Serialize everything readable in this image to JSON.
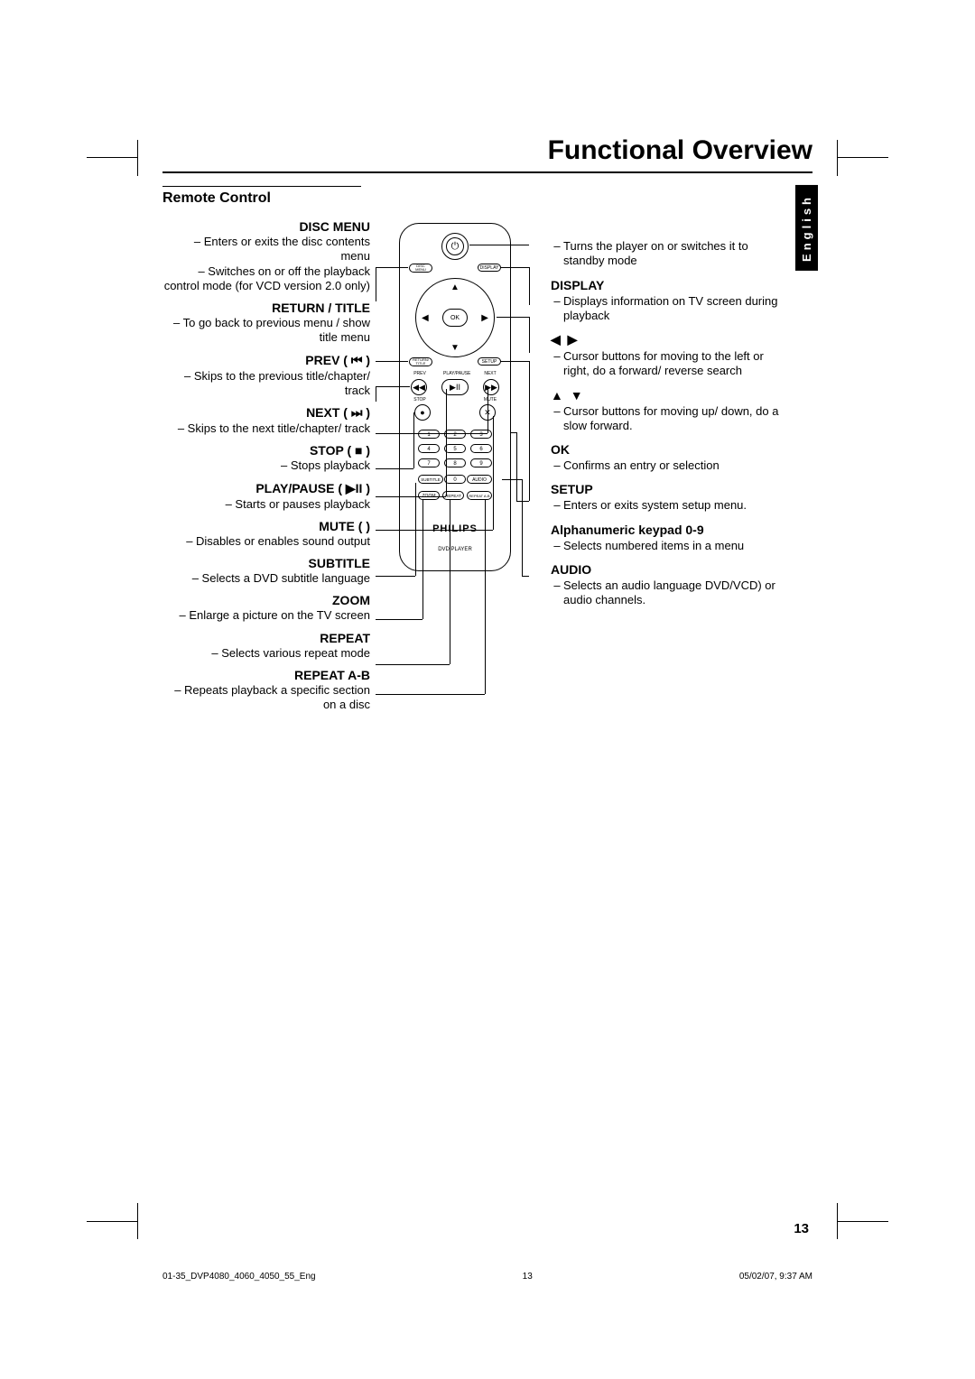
{
  "title": "Functional Overview",
  "language_tab": "English",
  "section_title": "Remote Control",
  "left_items": [
    {
      "heading": "DISC MENU",
      "lines": [
        "– Enters or exits the disc contents menu",
        "– Switches on or off the playback control mode (for VCD version 2.0 only)"
      ]
    },
    {
      "heading": "RETURN / TITLE",
      "lines": [
        "– To go back to previous menu / show  title menu"
      ]
    },
    {
      "heading": "PREV ( ⏮ )",
      "lines": [
        "– Skips to the previous title/chapter/ track"
      ]
    },
    {
      "heading": "NEXT ( ⏭ )",
      "lines": [
        "– Skips to the next title/chapter/ track"
      ]
    },
    {
      "heading": "STOP ( ■ )",
      "lines": [
        "– Stops playback"
      ]
    },
    {
      "heading": "PLAY/PAUSE ( ▶II )",
      "lines": [
        "– Starts or pauses playback"
      ]
    },
    {
      "heading": "MUTE (    )",
      "lines": [
        "– Disables or enables sound output"
      ]
    },
    {
      "heading": "SUBTITLE",
      "lines": [
        "– Selects a DVD subtitle language"
      ]
    },
    {
      "heading": "ZOOM",
      "lines": [
        "– Enlarge a picture on the TV screen"
      ]
    },
    {
      "heading": "REPEAT",
      "lines": [
        "– Selects various repeat mode"
      ]
    },
    {
      "heading": "REPEAT A-B",
      "lines": [
        "– Repeats playback a specific section on a disc"
      ]
    }
  ],
  "right_items": [
    {
      "heading": "⏻",
      "lines": [
        "Turns the player on or switches it to standby mode"
      ],
      "head_hidden": true,
      "top_pad": 22
    },
    {
      "heading": "DISPLAY",
      "lines": [
        "Displays information on TV screen during playback"
      ]
    },
    {
      "heading": "◀ ▶",
      "arrows": true,
      "lines": [
        "Cursor buttons for moving to the left or right, do a forward/ reverse search"
      ]
    },
    {
      "heading": "▲ ▼",
      "arrows": true,
      "lines": [
        "Cursor buttons for moving up/ down, do a slow forward."
      ]
    },
    {
      "heading": "OK",
      "lines": [
        "Confirms an entry or selection"
      ]
    },
    {
      "heading": "SETUP",
      "lines": [
        "Enters or exits system setup menu."
      ]
    },
    {
      "heading": "Alphanumeric keypad 0-9",
      "lines": [
        "Selects numbered items in a menu"
      ]
    },
    {
      "heading": "AUDIO",
      "lines": [
        "Selects an audio language DVD/VCD) or audio channels."
      ]
    }
  ],
  "remote": {
    "power_glyph": "⏻",
    "disc_menu": "DISC\nMENU",
    "display": "DISPLAY",
    "ok": "OK",
    "return_title": "RETURN/\nTITLE",
    "setup": "SETUP",
    "prev": "◀◀",
    "prev_lbl": "PREV",
    "next": "▶▶",
    "next_lbl": "NEXT",
    "playpause": "▶II",
    "playpause_lbl": "PLAY/PAUSE",
    "stop": "●",
    "stop_lbl": "STOP",
    "mute": "✕",
    "mute_lbl": "MUTE",
    "nums": [
      "1",
      "2",
      "3",
      "4",
      "5",
      "6",
      "7",
      "8",
      "9"
    ],
    "subtitle": "SUBTITLE",
    "zero": "0",
    "audio": "AUDIO",
    "zoom": "ZOOM",
    "repeat": "REPEAT",
    "repeat_ab": "REPEAT A-B",
    "brand": "PHILIPS",
    "brand_sub": "DVD PLAYER"
  },
  "page_number": "13",
  "footer": {
    "file": "01-35_DVP4080_4060_4050_55_Eng",
    "page": "13",
    "datetime": "05/02/07, 9:37 AM"
  }
}
